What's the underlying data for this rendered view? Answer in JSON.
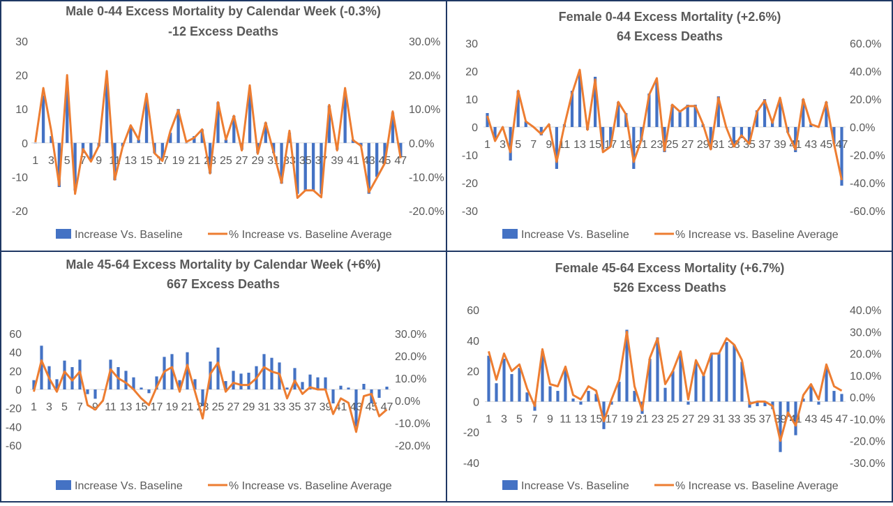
{
  "chart_data": [
    {
      "type": "bar",
      "title": "Male 0-44 Excess Mortality by Calendar Week (-0.3%)",
      "subtitle": "-12 Excess Deaths",
      "x": [
        1,
        2,
        3,
        4,
        5,
        6,
        7,
        8,
        9,
        10,
        11,
        12,
        13,
        14,
        15,
        16,
        17,
        18,
        19,
        20,
        21,
        22,
        23,
        24,
        25,
        26,
        27,
        28,
        29,
        30,
        31,
        32,
        33,
        34,
        35,
        36,
        37,
        38,
        39,
        40,
        41,
        42,
        43,
        44,
        45,
        46,
        47
      ],
      "x_tick_labels": [
        "1",
        "3",
        "5",
        "7",
        "9",
        "11",
        "13",
        "15",
        "17",
        "19",
        "21",
        "23",
        "25",
        "27",
        "29",
        "31",
        "33",
        "35",
        "37",
        "39",
        "41",
        "43",
        "45",
        "47"
      ],
      "y_left_ticks": [
        "30",
        "20",
        "10",
        "0",
        "-10",
        "-20"
      ],
      "y_right_ticks": [
        "30.0%",
        "20.0%",
        "10.0%",
        "0.0%",
        "-10.0%",
        "-20.0%"
      ],
      "ylim_left": [
        -20,
        30
      ],
      "ylim_right": [
        -0.2,
        0.3
      ],
      "series": [
        {
          "name": "Increase Vs. Baseline",
          "type": "bar",
          "axis": "left",
          "color": "#4472c4",
          "values": [
            0,
            14,
            2,
            -13,
            18,
            -14,
            -3,
            -5,
            -1,
            19,
            -11,
            -1,
            5,
            1,
            13,
            -3,
            -5,
            3,
            10,
            0,
            2,
            4,
            -9,
            12,
            1,
            8,
            -2,
            15,
            -3,
            6,
            -3,
            -12,
            3,
            -15,
            -14,
            -14,
            -15,
            11,
            -2,
            15,
            1,
            -1,
            -15,
            -10,
            -6,
            9,
            -4
          ]
        },
        {
          "name": "% Increase vs. Baseline Average",
          "type": "line",
          "axis": "right",
          "color": "#ed7d31",
          "values": [
            0.002,
            0.162,
            0.035,
            -0.125,
            0.2,
            -0.15,
            -0.018,
            -0.055,
            -0.008,
            0.212,
            -0.108,
            -0.01,
            0.052,
            0.01,
            0.145,
            -0.03,
            -0.053,
            0.035,
            0.097,
            0.003,
            0.015,
            0.04,
            -0.09,
            0.12,
            0.01,
            0.08,
            -0.022,
            0.17,
            -0.032,
            0.06,
            -0.028,
            -0.118,
            0.036,
            -0.162,
            -0.14,
            -0.14,
            -0.16,
            0.112,
            -0.022,
            0.162,
            0.008,
            -0.008,
            -0.145,
            -0.103,
            -0.06,
            0.093,
            -0.045
          ]
        }
      ],
      "legend": "bottom"
    },
    {
      "type": "bar",
      "title": "Female 0-44 Excess Mortality (+2.6%)",
      "subtitle": "64 Excess Deaths",
      "x": [
        1,
        2,
        3,
        4,
        5,
        6,
        7,
        8,
        9,
        10,
        11,
        12,
        13,
        14,
        15,
        16,
        17,
        18,
        19,
        20,
        21,
        22,
        23,
        24,
        25,
        26,
        27,
        28,
        29,
        30,
        31,
        32,
        33,
        34,
        35,
        36,
        37,
        38,
        39,
        40,
        41,
        42,
        43,
        44,
        45,
        46,
        47
      ],
      "x_tick_labels": [
        "1",
        "3",
        "5",
        "7",
        "9",
        "11",
        "13",
        "15",
        "17",
        "19",
        "21",
        "23",
        "25",
        "27",
        "29",
        "31",
        "33",
        "35",
        "37",
        "39",
        "41",
        "43",
        "45",
        "47"
      ],
      "y_left_ticks": [
        "30",
        "20",
        "10",
        "0",
        "-10",
        "-20",
        "-30"
      ],
      "y_right_ticks": [
        "60.0%",
        "40.0%",
        "20.0%",
        "0.0%",
        "-20.0%",
        "-40.0%",
        "-60.0%"
      ],
      "ylim_left": [
        -30,
        30
      ],
      "ylim_right": [
        -0.6,
        0.6
      ],
      "series": [
        {
          "name": "Increase Vs. Baseline",
          "type": "bar",
          "axis": "left",
          "color": "#4472c4",
          "values": [
            5,
            -4,
            0,
            -12,
            13,
            2,
            0,
            -3,
            1,
            -15,
            1,
            13,
            19,
            -1,
            18,
            -8,
            -7,
            9,
            5,
            -15,
            -5,
            12,
            16,
            -9,
            8,
            6,
            8,
            8,
            1,
            -8,
            11,
            0,
            -7,
            -4,
            -6,
            6,
            10,
            2,
            10,
            -2,
            -9,
            10,
            1,
            0,
            9,
            -6,
            -21
          ]
        },
        {
          "name": "% Increase vs. Baseline Average",
          "type": "line",
          "axis": "right",
          "color": "#ed7d31",
          "values": [
            0.08,
            -0.1,
            0.0,
            -0.18,
            0.26,
            0.04,
            0.0,
            -0.05,
            0.02,
            -0.25,
            0.01,
            0.24,
            0.41,
            -0.02,
            0.34,
            -0.18,
            -0.14,
            0.18,
            0.09,
            -0.25,
            -0.09,
            0.23,
            0.35,
            -0.17,
            0.16,
            0.11,
            0.15,
            0.15,
            0.02,
            -0.16,
            0.21,
            0.0,
            -0.14,
            -0.06,
            -0.12,
            0.11,
            0.19,
            0.03,
            0.21,
            -0.04,
            -0.16,
            0.2,
            0.02,
            0.0,
            0.18,
            -0.12,
            -0.38
          ]
        }
      ],
      "legend": "bottom"
    },
    {
      "type": "bar",
      "title": "Male 45-64 Excess Mortality by Calendar Week  (+6%)",
      "subtitle": "667 Excess Deaths",
      "x": [
        1,
        2,
        3,
        4,
        5,
        6,
        7,
        8,
        9,
        10,
        11,
        12,
        13,
        14,
        15,
        16,
        17,
        18,
        19,
        20,
        21,
        22,
        23,
        24,
        25,
        26,
        27,
        28,
        29,
        30,
        31,
        32,
        33,
        34,
        35,
        36,
        37,
        38,
        39,
        40,
        41,
        42,
        43,
        44,
        45,
        46,
        47
      ],
      "x_tick_labels": [
        "1",
        "3",
        "5",
        "7",
        "9",
        "11",
        "13",
        "15",
        "17",
        "19",
        "21",
        "23",
        "25",
        "27",
        "29",
        "31",
        "33",
        "35",
        "37",
        "39",
        "41",
        "43",
        "45",
        "47"
      ],
      "y_left_ticks": [
        "60",
        "40",
        "20",
        "0",
        "-20",
        "-40",
        "-60"
      ],
      "y_right_ticks": [
        "30.0%",
        "20.0%",
        "10.0%",
        "0.0%",
        "-10.0%",
        "-20.0%"
      ],
      "ylim_left": [
        -60,
        60
      ],
      "ylim_right": [
        -0.2,
        0.3
      ],
      "series": [
        {
          "name": "Increase Vs. Baseline",
          "type": "bar",
          "axis": "left",
          "color": "#4472c4",
          "values": [
            10,
            47,
            25,
            11,
            31,
            24,
            32,
            -5,
            -10,
            0,
            32,
            24,
            20,
            13,
            2,
            -4,
            14,
            35,
            38,
            10,
            40,
            11,
            -18,
            30,
            45,
            9,
            20,
            17,
            18,
            25,
            38,
            34,
            29,
            2,
            23,
            8,
            16,
            13,
            13,
            -15,
            4,
            2,
            -40,
            6,
            -15,
            -9,
            3
          ]
        },
        {
          "name": "% Increase vs. Baseline Average",
          "type": "line",
          "axis": "right",
          "color": "#ed7d31",
          "values": [
            0.04,
            0.18,
            0.1,
            0.04,
            0.13,
            0.09,
            0.13,
            -0.02,
            -0.04,
            0.0,
            0.14,
            0.1,
            0.08,
            0.05,
            0.01,
            -0.02,
            0.06,
            0.13,
            0.15,
            0.04,
            0.16,
            0.04,
            -0.08,
            0.12,
            0.17,
            0.04,
            0.08,
            0.07,
            0.07,
            0.1,
            0.15,
            0.13,
            0.12,
            0.01,
            0.09,
            0.03,
            0.06,
            0.05,
            0.05,
            -0.06,
            0.01,
            -0.01,
            -0.14,
            0.02,
            0.03,
            -0.07,
            -0.04
          ]
        }
      ],
      "legend": "bottom"
    },
    {
      "type": "bar",
      "title": "Female 45-64 Excess Mortality (+6.7%)",
      "subtitle": "526 Excess Deaths",
      "x": [
        1,
        2,
        3,
        4,
        5,
        6,
        7,
        8,
        9,
        10,
        11,
        12,
        13,
        14,
        15,
        16,
        17,
        18,
        19,
        20,
        21,
        22,
        23,
        24,
        25,
        26,
        27,
        28,
        29,
        30,
        31,
        32,
        33,
        34,
        35,
        36,
        37,
        38,
        39,
        40,
        41,
        42,
        43,
        44,
        45,
        46,
        47
      ],
      "x_tick_labels": [
        "1",
        "3",
        "5",
        "7",
        "9",
        "11",
        "13",
        "15",
        "17",
        "19",
        "21",
        "23",
        "25",
        "27",
        "29",
        "31",
        "33",
        "35",
        "37",
        "39",
        "41",
        "43",
        "45",
        "47"
      ],
      "y_left_ticks": [
        "60",
        "40",
        "20",
        "0",
        "-20",
        "-40"
      ],
      "y_right_ticks": [
        "40.0%",
        "30.0%",
        "20.0%",
        "10.0%",
        "0.0%",
        "-10.0%",
        "-20.0%",
        "-30.0%"
      ],
      "ylim_left": [
        -40,
        60
      ],
      "ylim_right": [
        -0.3,
        0.4
      ],
      "series": [
        {
          "name": "Increase Vs. Baseline",
          "type": "bar",
          "axis": "left",
          "color": "#4472c4",
          "values": [
            30,
            12,
            28,
            18,
            22,
            6,
            -6,
            33,
            10,
            7,
            21,
            2,
            -2,
            7,
            5,
            -18,
            -2,
            13,
            47,
            7,
            -8,
            28,
            42,
            9,
            20,
            32,
            -2,
            26,
            17,
            31,
            32,
            39,
            37,
            26,
            -4,
            -3,
            -3,
            -5,
            -33,
            -10,
            -22,
            2,
            11,
            -2,
            22,
            7,
            5
          ]
        },
        {
          "name": "% Increase vs. Baseline Average",
          "type": "line",
          "axis": "right",
          "color": "#ed7d31",
          "values": [
            0.21,
            0.08,
            0.2,
            0.12,
            0.15,
            0.04,
            -0.04,
            0.22,
            0.06,
            0.05,
            0.14,
            0.01,
            -0.01,
            0.05,
            0.03,
            -0.11,
            -0.01,
            0.08,
            0.3,
            0.05,
            -0.06,
            0.18,
            0.27,
            0.06,
            0.12,
            0.21,
            -0.01,
            0.17,
            0.1,
            0.2,
            0.2,
            0.27,
            0.24,
            0.17,
            -0.03,
            -0.02,
            -0.02,
            -0.04,
            -0.2,
            -0.07,
            -0.13,
            0.01,
            0.06,
            -0.01,
            0.15,
            0.05,
            0.03
          ]
        }
      ],
      "legend": "bottom"
    }
  ]
}
